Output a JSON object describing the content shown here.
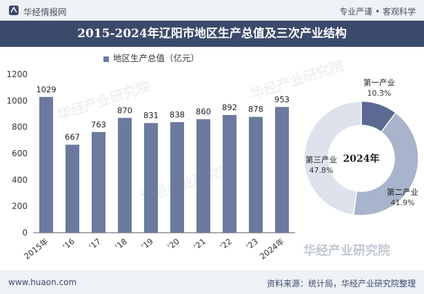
{
  "header": {
    "brand": "华经情报网",
    "slogan": "专业严谨 • 客观科学"
  },
  "title": "2015-2024年辽阳市地区生产总值及三次产业结构",
  "legend": "地区生产总值（亿元）",
  "footer": {
    "url": "www.huaon.com",
    "source": "资料来源：统计局，华经产业研究院整理"
  },
  "watermark": "华经产业研究院",
  "colors": {
    "bar": "#6b7a9e",
    "header_bg": "#3b4a6b",
    "donut_primary": "#5a6a92",
    "donut_secondary": "#a8b3cc",
    "donut_tertiary": "#dde2ec"
  },
  "chart_data": [
    {
      "type": "bar",
      "title": "",
      "series": [
        {
          "name": "地区生产总值（亿元）",
          "values": [
            1029,
            667,
            763,
            870,
            831,
            838,
            860,
            892,
            878,
            953
          ]
        }
      ],
      "categories": [
        "2015年",
        "'16",
        "'17",
        "'18",
        "'19",
        "'20",
        "'21",
        "'22",
        "'23",
        "2024年"
      ],
      "ylim": [
        0,
        1200
      ],
      "yticks": [
        0,
        200,
        400,
        600,
        800,
        1000,
        1200
      ],
      "ytick_labels": [
        "0",
        "200",
        "400",
        "600",
        "800",
        "1000",
        "1200"
      ],
      "grid": false,
      "legend_position": "top"
    },
    {
      "type": "pie",
      "donut": true,
      "center_label": "2024年",
      "slices": [
        {
          "name": "第一产业",
          "value": 10.3,
          "label": "10.3%"
        },
        {
          "name": "第二产业",
          "value": 41.9,
          "label": "41.9%"
        },
        {
          "name": "第三产业",
          "value": 47.8,
          "label": "47.8%"
        }
      ]
    }
  ]
}
